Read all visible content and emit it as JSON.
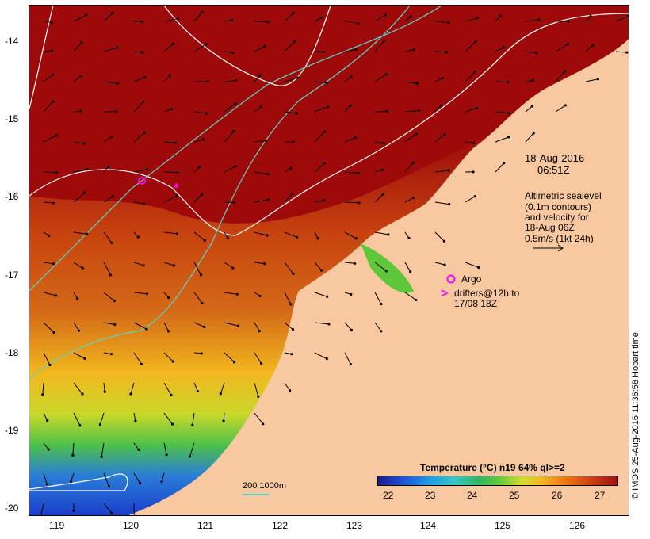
{
  "lat_labels": [
    "-14",
    "-15",
    "-16",
    "-17",
    "-18",
    "-19",
    "-20"
  ],
  "lon_labels": [
    "119",
    "120",
    "121",
    "122",
    "123",
    "124",
    "125",
    "126"
  ],
  "date_line1": "18-Aug-2016",
  "date_line2": "06:51Z",
  "legend_lines": [
    "Altimetric sealevel",
    "(0.1m contours)",
    "and velocity for",
    "18-Aug 06Z",
    "0.5m/s (1kt 24h)"
  ],
  "argo_label": "Argo",
  "drifters_line1": "drifters@12h to",
  "drifters_line2": "17/08 18Z",
  "colorbar_title": "Temperature (°C) n19 64% ql>=2",
  "colorbar_ticks": [
    "22",
    "23",
    "24",
    "25",
    "26",
    "27"
  ],
  "scale_label": "200  1000m",
  "copyright": "© IMOS 25-Aug-2016 11:36:58 Hobart time",
  "colors": {
    "land": "#f8c8a0",
    "warm": "#9e0a0a",
    "cold": "#1a3ccc",
    "contour": "#ffffff",
    "isobath": "#59d6c8",
    "marker": "#ff00ff"
  }
}
